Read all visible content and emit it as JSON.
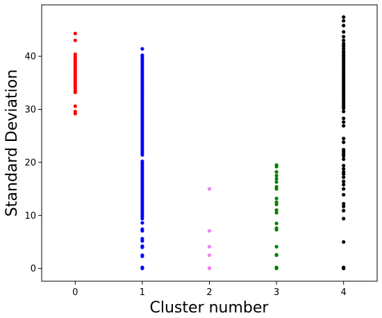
{
  "chart_data": {
    "type": "scatter",
    "xlabel": "Cluster number",
    "ylabel": "Standard Deviation",
    "xlim": [
      -0.5,
      4.5
    ],
    "ylim": [
      -2.4,
      49.7
    ],
    "x_ticks": [
      0,
      1,
      2,
      3,
      4
    ],
    "y_ticks": [
      0,
      10,
      20,
      30,
      40
    ],
    "grid": false,
    "legend": "none",
    "series": [
      {
        "color": "#ff0000",
        "x": 0,
        "values": [
          44.3,
          43.0,
          40.4,
          40.0,
          39.6,
          39.2,
          38.8,
          38.4,
          38.0,
          37.6,
          37.2,
          36.8,
          36.4,
          36.0,
          35.6,
          35.2,
          34.8,
          34.4,
          34.0,
          33.6,
          33.2,
          30.6,
          29.6,
          29.2
        ]
      },
      {
        "color": "#0000ff",
        "x": 1,
        "values": [
          41.4,
          40.2,
          39.8,
          39.4,
          39.0,
          38.6,
          38.2,
          37.8,
          37.4,
          37.0,
          36.6,
          36.2,
          35.8,
          35.4,
          35.0,
          34.6,
          34.2,
          33.8,
          33.4,
          33.0,
          32.6,
          32.2,
          31.8,
          31.4,
          31.0,
          30.6,
          30.2,
          29.8,
          29.4,
          29.0,
          28.6,
          28.2,
          27.8,
          27.4,
          27.0,
          26.6,
          26.2,
          25.8,
          25.4,
          25.0,
          24.6,
          24.2,
          23.8,
          23.4,
          23.0,
          22.6,
          22.2,
          21.8,
          21.4,
          20.2,
          19.8,
          19.4,
          19.0,
          18.6,
          18.2,
          17.8,
          17.4,
          17.0,
          16.6,
          16.2,
          15.8,
          15.4,
          15.0,
          14.6,
          14.2,
          13.8,
          13.4,
          13.0,
          12.6,
          12.2,
          11.8,
          11.4,
          11.0,
          10.6,
          10.2,
          9.8,
          9.4,
          8.6,
          7.4,
          7.1,
          5.6,
          5.2,
          4.2,
          4.0,
          2.5,
          2.3,
          0.2,
          0.0
        ]
      },
      {
        "color": "#ee82ee",
        "x": 2,
        "values": [
          15.0,
          7.1,
          4.1,
          2.5,
          0.1,
          0.0
        ]
      },
      {
        "color": "#008000",
        "x": 3,
        "values": [
          19.5,
          19.2,
          18.2,
          17.5,
          16.9,
          16.3,
          15.4,
          15.0,
          13.2,
          12.5,
          12.1,
          11.0,
          10.5,
          8.5,
          7.6,
          7.3,
          4.1,
          2.6,
          2.5,
          0.2,
          0.1,
          0.0
        ]
      },
      {
        "color": "#000000",
        "x": 4,
        "values": [
          47.4,
          46.7,
          45.8,
          44.6,
          43.7,
          43.0,
          42.4,
          42.0,
          41.5,
          41.0,
          40.6,
          40.2,
          39.8,
          39.4,
          39.0,
          38.6,
          38.2,
          37.8,
          37.4,
          37.0,
          36.6,
          36.2,
          35.8,
          35.4,
          35.0,
          34.6,
          34.2,
          33.8,
          33.4,
          33.0,
          32.6,
          32.2,
          31.8,
          31.4,
          31.0,
          30.6,
          30.2,
          29.6,
          28.3,
          27.6,
          26.9,
          24.5,
          23.8,
          22.4,
          22.0,
          21.6,
          21.2,
          20.6,
          19.4,
          18.8,
          18.2,
          17.8,
          17.2,
          16.4,
          15.8,
          15.0,
          13.9,
          12.2,
          11.7,
          10.9,
          9.4,
          5.0,
          0.2,
          0.0
        ]
      }
    ]
  }
}
